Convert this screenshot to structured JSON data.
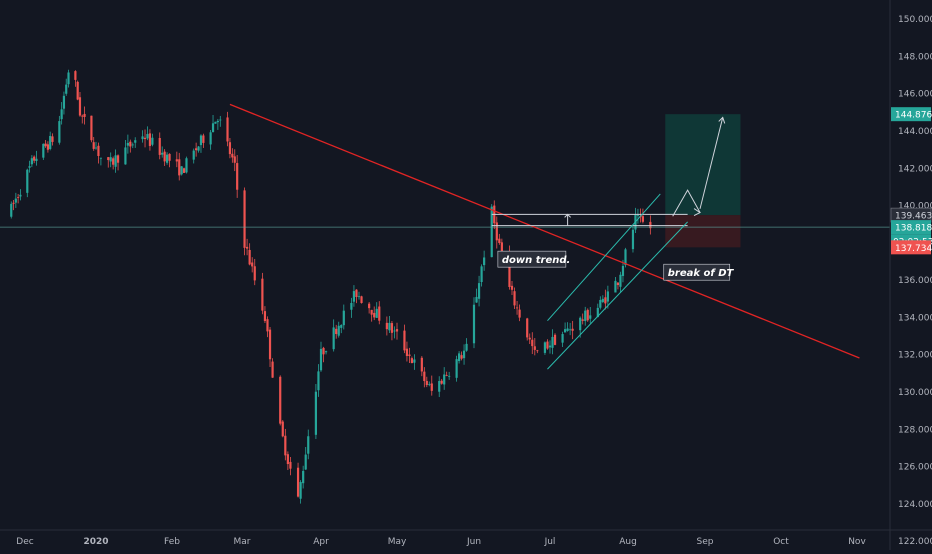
{
  "chart_data": {
    "type": "candlestick",
    "symbol_context": "daily price chart",
    "x_labels": [
      "Dec",
      "2020",
      "Feb",
      "Mar",
      "Apr",
      "May",
      "Jun",
      "Jul",
      "Aug",
      "Sep",
      "Oct",
      "Nov"
    ],
    "y_ticks": [
      "150.000",
      "148.000",
      "146.000",
      "144.000",
      "142.000",
      "140.000",
      "136.000",
      "134.000",
      "132.000",
      "130.000",
      "128.000",
      "126.000",
      "124.000",
      "122.000"
    ],
    "ylim": [
      121.5,
      151.0
    ],
    "price_path": [
      {
        "date": "2019-11-24",
        "price": 139.5
      },
      {
        "date": "2019-12-05",
        "price": 142.5
      },
      {
        "date": "2019-12-15",
        "price": 143.8
      },
      {
        "date": "2019-12-21",
        "price": 147.9
      },
      {
        "date": "2019-12-25",
        "price": 145.0
      },
      {
        "date": "2020-01-05",
        "price": 142.0
      },
      {
        "date": "2020-01-20",
        "price": 143.8
      },
      {
        "date": "2020-02-05",
        "price": 141.8
      },
      {
        "date": "2020-02-20",
        "price": 144.8
      },
      {
        "date": "2020-02-27",
        "price": 142.0
      },
      {
        "date": "2020-03-01",
        "price": 138.5
      },
      {
        "date": "2020-03-10",
        "price": 134.0
      },
      {
        "date": "2020-03-16",
        "price": 128.0
      },
      {
        "date": "2020-03-23",
        "price": 124.2
      },
      {
        "date": "2020-04-01",
        "price": 132.0
      },
      {
        "date": "2020-04-15",
        "price": 135.3
      },
      {
        "date": "2020-05-01",
        "price": 133.0
      },
      {
        "date": "2020-05-15",
        "price": 130.0
      },
      {
        "date": "2020-05-29",
        "price": 132.3
      },
      {
        "date": "2020-06-08",
        "price": 139.6
      },
      {
        "date": "2020-06-15",
        "price": 135.5
      },
      {
        "date": "2020-06-25",
        "price": 132.0
      },
      {
        "date": "2020-07-05",
        "price": 133.0
      },
      {
        "date": "2020-07-20",
        "price": 134.5
      },
      {
        "date": "2020-07-28",
        "price": 136.0
      },
      {
        "date": "2020-08-04",
        "price": 139.2
      },
      {
        "date": "2020-08-10",
        "price": 138.8
      }
    ],
    "price_labels": {
      "target": "144.876",
      "high": "139.463",
      "last": "138.818",
      "countdown": "02:02:53",
      "stop": "137.734"
    },
    "target_price": 144.876,
    "high_price": 139.463,
    "last_price": 138.818,
    "stop_price": 137.734,
    "annotations": [
      {
        "text": "down trend.",
        "x": "2020-06-12",
        "y": 137.1
      },
      {
        "text": "break of DT",
        "x": "2020-08-17",
        "y": 136.4
      }
    ],
    "drawings": {
      "downtrend_line": [
        {
          "x": "2020-02-25",
          "y": 145.4
        },
        {
          "x": "2020-11-02",
          "y": 131.8
        }
      ],
      "resistance_upper": [
        {
          "x": "2020-06-08",
          "y": 139.5
        },
        {
          "x": "2020-08-25",
          "y": 139.5
        }
      ],
      "resistance_lower": [
        {
          "x": "2020-06-08",
          "y": 138.9
        },
        {
          "x": "2020-08-25",
          "y": 138.9
        }
      ],
      "channel_upper": [
        {
          "x": "2020-06-30",
          "y": 133.8
        },
        {
          "x": "2020-08-14",
          "y": 140.6
        }
      ],
      "channel_lower": [
        {
          "x": "2020-06-30",
          "y": 131.2
        },
        {
          "x": "2020-08-25",
          "y": 139.1
        }
      ],
      "projection_path": [
        {
          "x": "2020-08-19",
          "y": 139.4
        },
        {
          "x": "2020-08-25",
          "y": 140.8
        },
        {
          "x": "2020-08-30",
          "y": 139.6
        }
      ],
      "target_arrow": [
        {
          "x": "2020-08-30",
          "y": 139.8
        },
        {
          "x": "2020-09-08",
          "y": 144.7
        }
      ],
      "position_box": {
        "x_start": "2020-08-16",
        "x_end": "2020-09-15"
      }
    },
    "colors": {
      "background": "#131722",
      "axis_text": "#b2b5be",
      "up_candle": "#26a69a",
      "down_candle": "#ef5350",
      "trendline": "#e02424",
      "channel": "#2bbbad",
      "profit_zone": "#0f3b38",
      "loss_zone": "#3c1b20",
      "label_green": "#26a69a",
      "label_red": "#ef5350",
      "label_box": "#2a2e39"
    }
  }
}
